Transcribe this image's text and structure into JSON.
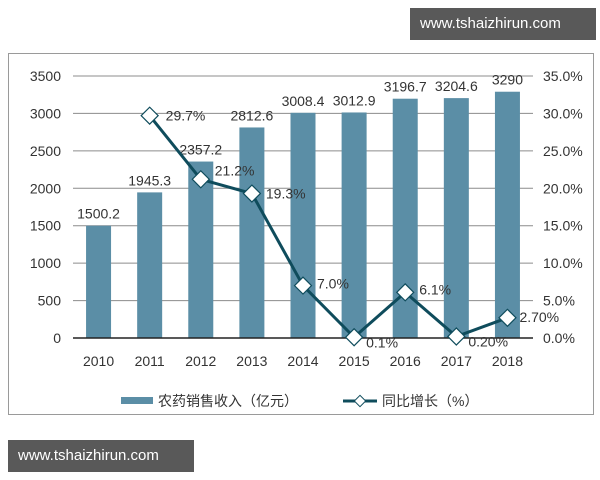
{
  "watermarks": {
    "top": "www.tshaizhirun.com",
    "bottom": "www.tshaizhirun.com"
  },
  "colors": {
    "bar": "#5b8ea6",
    "line": "#0f4c5c",
    "marker_fill": "#ffffff",
    "grid": "#8c8c8c",
    "text": "#333333",
    "watermark_bg": "#595959"
  },
  "chart_data": {
    "type": "bar+line",
    "categories": [
      "2010",
      "2011",
      "2012",
      "2013",
      "2014",
      "2015",
      "2016",
      "2017",
      "2018"
    ],
    "series": [
      {
        "name": "农药销售收入（亿元）",
        "type": "bar",
        "axis": "left",
        "values": [
          1500.2,
          1945.3,
          2357.2,
          2812.6,
          3008.4,
          3012.9,
          3196.7,
          3204.6,
          3290
        ],
        "labels": [
          "1500.2",
          "1945.3",
          "2357.2",
          "2812.6",
          "3008.4",
          "3012.9",
          "3196.7",
          "3204.6",
          "3290"
        ]
      },
      {
        "name": "同比增长（%）",
        "type": "line",
        "axis": "right",
        "values": [
          null,
          29.7,
          21.2,
          19.3,
          7.0,
          0.1,
          6.1,
          0.2,
          2.7
        ],
        "labels": [
          "",
          "29.7%",
          "21.2%",
          "19.3%",
          "7.0%",
          "0.1%",
          "6.1%",
          "0.20%",
          "2.70%"
        ]
      }
    ],
    "left_axis": {
      "ticks": [
        "0",
        "500",
        "1000",
        "1500",
        "2000",
        "2500",
        "3000",
        "3500"
      ],
      "ylim": [
        0,
        3500
      ]
    },
    "right_axis": {
      "ticks": [
        "0.0%",
        "5.0%",
        "10.0%",
        "15.0%",
        "20.0%",
        "25.0%",
        "30.0%",
        "35.0%"
      ],
      "ylim": [
        0,
        35
      ]
    },
    "title": "",
    "xlabel": "",
    "ylabel": "",
    "grid": true,
    "legend_position": "bottom",
    "legend": [
      "农药销售收入（亿元）",
      "同比增长（%）"
    ]
  }
}
